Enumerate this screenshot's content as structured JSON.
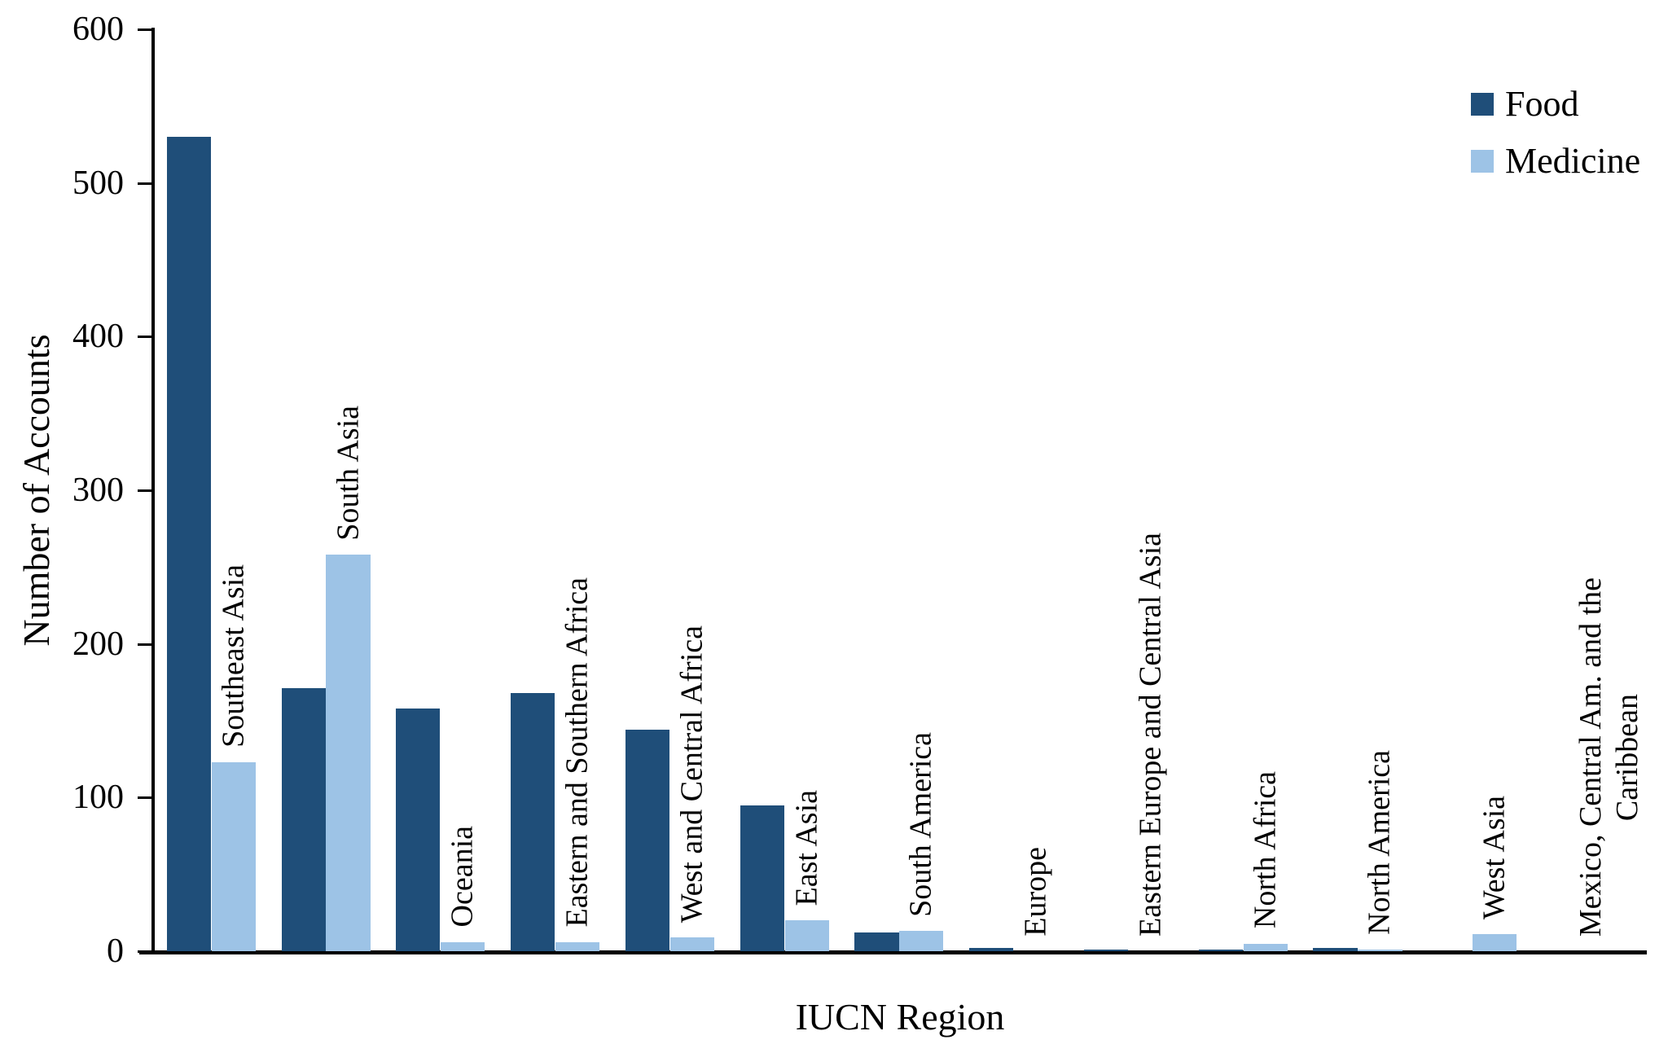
{
  "chart_data": {
    "type": "bar",
    "title": "",
    "xlabel": "IUCN Region",
    "ylabel": "Number of Accounts",
    "ylim": [
      0,
      600
    ],
    "yticks": [
      0,
      100,
      200,
      300,
      400,
      500,
      600
    ],
    "grid": false,
    "legend_position": "top-right",
    "categories": [
      {
        "label": "Southeast Asia",
        "lines": [
          "Southeast Asia"
        ]
      },
      {
        "label": "South Asia",
        "lines": [
          "South Asia"
        ]
      },
      {
        "label": "Oceania",
        "lines": [
          "Oceania"
        ]
      },
      {
        "label": "Eastern and Southern Africa",
        "lines": [
          "Eastern and Southern Africa"
        ]
      },
      {
        "label": "West and Central Africa",
        "lines": [
          "West and Central Africa"
        ]
      },
      {
        "label": "East Asia",
        "lines": [
          "East Asia"
        ]
      },
      {
        "label": "South America",
        "lines": [
          "South America"
        ]
      },
      {
        "label": "Europe",
        "lines": [
          "Europe"
        ]
      },
      {
        "label": "Eastern Europe and Central Asia",
        "lines": [
          "Eastern Europe and Central Asia"
        ]
      },
      {
        "label": "North Africa",
        "lines": [
          "North Africa"
        ]
      },
      {
        "label": "North America",
        "lines": [
          "North America"
        ]
      },
      {
        "label": "West Asia",
        "lines": [
          "West Asia"
        ]
      },
      {
        "label": "Mexico, Central Am. and the Caribbean",
        "lines": [
          "Mexico, Central Am. and the",
          "Caribbean"
        ]
      }
    ],
    "series": [
      {
        "name": "Food",
        "color": "#1f4e79",
        "values": [
          530,
          171,
          158,
          168,
          144,
          95,
          12,
          2,
          1,
          1,
          2,
          0,
          0
        ]
      },
      {
        "name": "Medicine",
        "color": "#9dc3e6",
        "values": [
          123,
          258,
          6,
          6,
          9,
          20,
          13,
          0,
          0,
          5,
          1,
          11,
          0
        ]
      }
    ]
  }
}
